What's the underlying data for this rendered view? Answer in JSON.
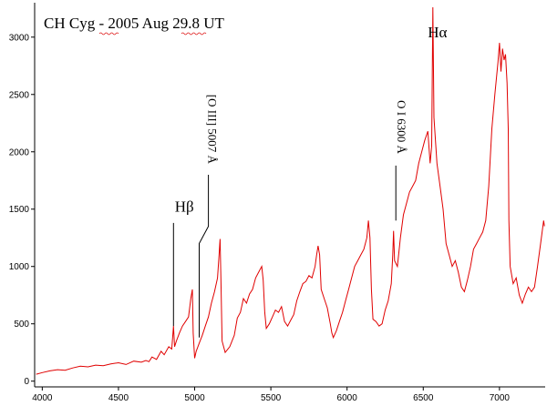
{
  "chart_data": {
    "type": "line",
    "title": "CH Cyg - 2005 Aug 29.8 UT",
    "xlabel": "",
    "ylabel": "",
    "xlim": [
      3950,
      7300
    ],
    "ylim": [
      -50,
      3300
    ],
    "x_ticks": [
      4000,
      4500,
      5000,
      5500,
      6000,
      6500,
      7000
    ],
    "y_ticks": [
      0,
      500,
      1000,
      1500,
      2000,
      2500,
      3000
    ],
    "grid": false,
    "line_color": "#e00000",
    "series": [
      {
        "points": [
          [
            3960,
            60
          ],
          [
            4000,
            75
          ],
          [
            4050,
            90
          ],
          [
            4100,
            100
          ],
          [
            4150,
            95
          ],
          [
            4200,
            115
          ],
          [
            4250,
            130
          ],
          [
            4300,
            125
          ],
          [
            4350,
            140
          ],
          [
            4400,
            135
          ],
          [
            4450,
            150
          ],
          [
            4500,
            160
          ],
          [
            4550,
            145
          ],
          [
            4600,
            175
          ],
          [
            4650,
            165
          ],
          [
            4680,
            180
          ],
          [
            4700,
            170
          ],
          [
            4720,
            210
          ],
          [
            4750,
            190
          ],
          [
            4780,
            260
          ],
          [
            4800,
            230
          ],
          [
            4830,
            300
          ],
          [
            4850,
            280
          ],
          [
            4861,
            480
          ],
          [
            4868,
            300
          ],
          [
            4880,
            350
          ],
          [
            4900,
            420
          ],
          [
            4920,
            480
          ],
          [
            4940,
            520
          ],
          [
            4960,
            560
          ],
          [
            4975,
            720
          ],
          [
            4985,
            800
          ],
          [
            4990,
            420
          ],
          [
            5000,
            200
          ],
          [
            5010,
            260
          ],
          [
            5030,
            330
          ],
          [
            5050,
            400
          ],
          [
            5070,
            480
          ],
          [
            5090,
            560
          ],
          [
            5110,
            680
          ],
          [
            5130,
            780
          ],
          [
            5150,
            900
          ],
          [
            5160,
            1100
          ],
          [
            5167,
            1240
          ],
          [
            5172,
            900
          ],
          [
            5180,
            350
          ],
          [
            5200,
            250
          ],
          [
            5230,
            300
          ],
          [
            5260,
            400
          ],
          [
            5280,
            550
          ],
          [
            5300,
            600
          ],
          [
            5320,
            720
          ],
          [
            5340,
            680
          ],
          [
            5360,
            760
          ],
          [
            5380,
            800
          ],
          [
            5400,
            900
          ],
          [
            5420,
            950
          ],
          [
            5440,
            1000
          ],
          [
            5450,
            880
          ],
          [
            5460,
            600
          ],
          [
            5470,
            460
          ],
          [
            5490,
            500
          ],
          [
            5510,
            560
          ],
          [
            5530,
            620
          ],
          [
            5550,
            600
          ],
          [
            5570,
            650
          ],
          [
            5590,
            520
          ],
          [
            5610,
            480
          ],
          [
            5630,
            530
          ],
          [
            5650,
            580
          ],
          [
            5670,
            700
          ],
          [
            5690,
            780
          ],
          [
            5710,
            850
          ],
          [
            5730,
            870
          ],
          [
            5750,
            920
          ],
          [
            5770,
            900
          ],
          [
            5790,
            1000
          ],
          [
            5800,
            1100
          ],
          [
            5810,
            1180
          ],
          [
            5820,
            1100
          ],
          [
            5830,
            800
          ],
          [
            5850,
            720
          ],
          [
            5870,
            640
          ],
          [
            5890,
            500
          ],
          [
            5900,
            420
          ],
          [
            5910,
            380
          ],
          [
            5930,
            440
          ],
          [
            5950,
            520
          ],
          [
            5970,
            600
          ],
          [
            5990,
            700
          ],
          [
            6010,
            800
          ],
          [
            6030,
            900
          ],
          [
            6050,
            1000
          ],
          [
            6070,
            1050
          ],
          [
            6090,
            1100
          ],
          [
            6110,
            1150
          ],
          [
            6130,
            1250
          ],
          [
            6140,
            1400
          ],
          [
            6150,
            1250
          ],
          [
            6160,
            800
          ],
          [
            6170,
            540
          ],
          [
            6190,
            520
          ],
          [
            6210,
            480
          ],
          [
            6230,
            500
          ],
          [
            6250,
            620
          ],
          [
            6270,
            700
          ],
          [
            6290,
            850
          ],
          [
            6300,
            1100
          ],
          [
            6305,
            1310
          ],
          [
            6312,
            1050
          ],
          [
            6330,
            1000
          ],
          [
            6350,
            1250
          ],
          [
            6370,
            1450
          ],
          [
            6390,
            1550
          ],
          [
            6410,
            1650
          ],
          [
            6430,
            1700
          ],
          [
            6450,
            1750
          ],
          [
            6470,
            1900
          ],
          [
            6490,
            2000
          ],
          [
            6510,
            2100
          ],
          [
            6530,
            2180
          ],
          [
            6545,
            1900
          ],
          [
            6555,
            2050
          ],
          [
            6563,
            3260
          ],
          [
            6570,
            2300
          ],
          [
            6590,
            1900
          ],
          [
            6610,
            1700
          ],
          [
            6630,
            1500
          ],
          [
            6650,
            1200
          ],
          [
            6670,
            1100
          ],
          [
            6690,
            1000
          ],
          [
            6710,
            1050
          ],
          [
            6730,
            950
          ],
          [
            6750,
            820
          ],
          [
            6770,
            780
          ],
          [
            6790,
            880
          ],
          [
            6810,
            1000
          ],
          [
            6830,
            1150
          ],
          [
            6850,
            1200
          ],
          [
            6870,
            1250
          ],
          [
            6890,
            1300
          ],
          [
            6910,
            1400
          ],
          [
            6930,
            1700
          ],
          [
            6950,
            2200
          ],
          [
            6970,
            2500
          ],
          [
            6990,
            2780
          ],
          [
            7000,
            2950
          ],
          [
            7010,
            2700
          ],
          [
            7020,
            2900
          ],
          [
            7030,
            2800
          ],
          [
            7040,
            2850
          ],
          [
            7050,
            2600
          ],
          [
            7058,
            2200
          ],
          [
            7062,
            1400
          ],
          [
            7070,
            1000
          ],
          [
            7090,
            850
          ],
          [
            7110,
            900
          ],
          [
            7130,
            750
          ],
          [
            7150,
            680
          ],
          [
            7170,
            760
          ],
          [
            7190,
            820
          ],
          [
            7210,
            780
          ],
          [
            7230,
            820
          ],
          [
            7250,
            1000
          ],
          [
            7270,
            1200
          ],
          [
            7290,
            1400
          ],
          [
            7295,
            1350
          ]
        ]
      }
    ],
    "annotations": [
      {
        "label": "Hβ",
        "text_x": 4870,
        "text_y": 1480,
        "line": [
          [
            4861,
            1380
          ],
          [
            4861,
            480
          ]
        ],
        "vertical": false,
        "size": "big"
      },
      {
        "label": "[O III] 5007 Å",
        "text_x": 5090,
        "text_y": 2500,
        "line": [
          [
            5090,
            1800
          ],
          [
            5090,
            1350
          ],
          [
            5030,
            1200
          ],
          [
            5030,
            380
          ]
        ],
        "vertical": true,
        "size": "small"
      },
      {
        "label": "O I 6300 Å",
        "text_x": 6330,
        "text_y": 2450,
        "line": [
          [
            6320,
            1880
          ],
          [
            6320,
            1400
          ]
        ],
        "vertical": true,
        "size": "small"
      },
      {
        "label": "Hα",
        "text_x": 6530,
        "text_y": 3000,
        "line": [],
        "vertical": false,
        "size": "big"
      }
    ]
  }
}
